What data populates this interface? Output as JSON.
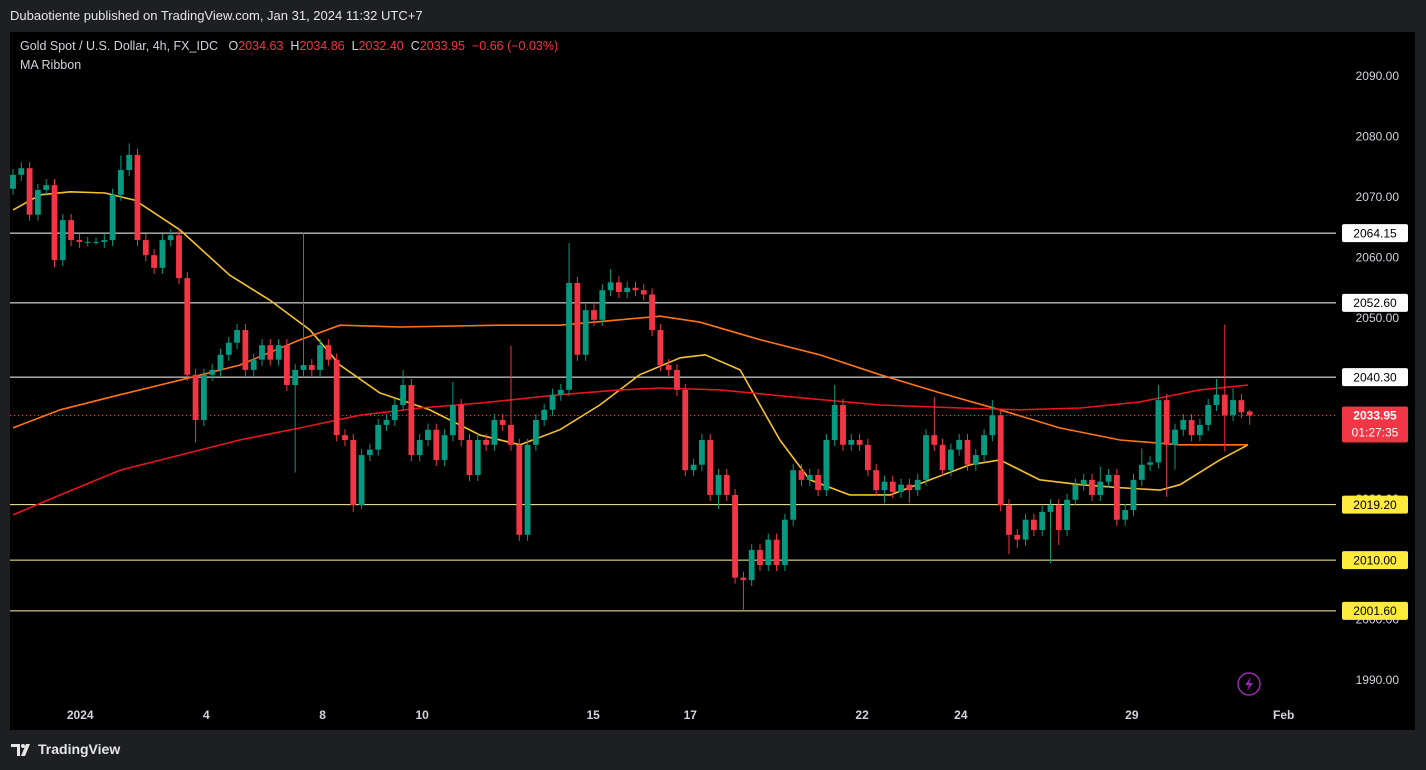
{
  "header": {
    "publisher_line": "Dubaotiente published on TradingView.com, Jan 31, 2024 11:32 UTC+7",
    "branding": "TradingView"
  },
  "chart_data": {
    "type": "candlestick",
    "title": "Gold Spot / U.S. Dollar, 4h, FX_IDC",
    "indicator": "MA Ribbon",
    "legend": [
      {
        "key": "O",
        "value": "2034.63"
      },
      {
        "key": "H",
        "value": "2034.86"
      },
      {
        "key": "L",
        "value": "2032.40"
      },
      {
        "key": "C",
        "value": "2033.95"
      }
    ],
    "change": "−0.66 (−0.03%)",
    "up_color": "#089981",
    "down_color": "#f23645",
    "open": [
      2071.5,
      2073.8,
      2074.9,
      2067.2,
      2071.3,
      2072.1,
      2059.7,
      2066.3,
      2063.0,
      2062.7,
      2062.7,
      2062.7,
      2063.0,
      2070.5,
      2074.6,
      2077.1,
      2063.0,
      2060.5,
      2058.4,
      2063.0,
      2063.8,
      2056.7,
      2040.7,
      2033.2,
      2040.7,
      2041.5,
      2044.0,
      2046.0,
      2048.1,
      2041.5,
      2043.2,
      2045.6,
      2043.2,
      2045.6,
      2039.0,
      2041.5,
      2042.3,
      2041.5,
      2045.6,
      2043.2,
      2030.7,
      2029.9,
      2019.1,
      2027.4,
      2028.3,
      2032.4,
      2033.2,
      2035.7,
      2039.0,
      2027.4,
      2029.9,
      2031.6,
      2026.6,
      2030.7,
      2035.7,
      2029.9,
      2024.1,
      2029.9,
      2029.1,
      2033.2,
      2032.4,
      2029.1,
      2014.2,
      2029.1,
      2033.2,
      2034.9,
      2037.4,
      2038.2,
      2055.9,
      2044.0,
      2051.4,
      2049.8,
      2054.7,
      2056.0,
      2054.4,
      2055.1,
      2054.7,
      2054.0,
      2048.1,
      2042.3,
      2041.5,
      2038.2,
      2024.9,
      2025.8,
      2029.9,
      2020.8,
      2024.1,
      2020.8,
      2007.1,
      2006.7,
      2011.7,
      2009.2,
      2013.4,
      2009.2,
      2016.7,
      2024.9,
      2023.3,
      2024.1,
      2021.6,
      2029.9,
      2035.7,
      2029.1,
      2029.9,
      2029.1,
      2024.9,
      2021.6,
      2023.0,
      2021.3,
      2022.5,
      2021.6,
      2023.3,
      2030.7,
      2029.1,
      2024.9,
      2028.3,
      2029.9,
      2025.8,
      2027.4,
      2030.7,
      2034.0,
      2019.1,
      2014.2,
      2013.4,
      2016.7,
      2015.0,
      2018.0,
      2019.1,
      2015.0,
      2020.0,
      2022.5,
      2023.3,
      2020.8,
      2023.0,
      2024.1,
      2016.7,
      2018.3,
      2023.3,
      2025.8,
      2026.2,
      2036.5,
      2029.1,
      2031.6,
      2033.2,
      2030.7,
      2032.4,
      2035.7,
      2037.4,
      2034.0,
      2036.5,
      2034.63
    ],
    "high": [
      2074.8,
      2075.9,
      2075.9,
      2072.3,
      2073.1,
      2073.1,
      2067.3,
      2067.3,
      2064.0,
      2063.5,
      2063.4,
      2064.0,
      2071.5,
      2077.0,
      2079.0,
      2078.1,
      2064.0,
      2061.5,
      2064.0,
      2064.8,
      2064.8,
      2057.7,
      2041.7,
      2041.7,
      2042.5,
      2045.0,
      2047.0,
      2049.1,
      2049.1,
      2044.2,
      2046.6,
      2046.6,
      2046.6,
      2046.6,
      2042.5,
      2064.2,
      2043.3,
      2046.6,
      2046.6,
      2044.2,
      2031.7,
      2030.9,
      2028.4,
      2029.3,
      2033.4,
      2034.2,
      2036.7,
      2041.5,
      2040.0,
      2030.9,
      2032.6,
      2032.6,
      2031.7,
      2039.5,
      2036.7,
      2030.9,
      2030.9,
      2030.9,
      2034.2,
      2034.2,
      2045.5,
      2030.1,
      2030.1,
      2034.2,
      2035.9,
      2038.4,
      2039.2,
      2062.5,
      2056.9,
      2052.4,
      2052.4,
      2055.7,
      2058.2,
      2057.0,
      2056.1,
      2056.1,
      2055.7,
      2055.0,
      2049.1,
      2043.3,
      2042.5,
      2039.2,
      2026.8,
      2030.9,
      2030.9,
      2025.1,
      2025.1,
      2021.8,
      2008.1,
      2012.7,
      2012.7,
      2014.4,
      2014.4,
      2017.7,
      2025.9,
      2025.9,
      2025.1,
      2025.1,
      2030.9,
      2039.0,
      2036.7,
      2030.9,
      2030.9,
      2030.1,
      2025.9,
      2024.0,
      2024.0,
      2023.5,
      2023.5,
      2024.3,
      2031.7,
      2037.0,
      2030.1,
      2029.3,
      2030.9,
      2030.9,
      2028.4,
      2031.7,
      2036.5,
      2035.0,
      2020.1,
      2015.2,
      2017.7,
      2017.7,
      2019.0,
      2020.1,
      2020.1,
      2021.0,
      2023.5,
      2024.3,
      2024.3,
      2025.5,
      2025.1,
      2025.1,
      2019.3,
      2024.3,
      2028.5,
      2027.2,
      2039.0,
      2037.5,
      2032.6,
      2034.2,
      2034.2,
      2033.4,
      2036.7,
      2040.0,
      2049.0,
      2038.5,
      2037.5,
      2034.86
    ],
    "low": [
      2070.5,
      2072.8,
      2066.2,
      2066.2,
      2070.3,
      2058.5,
      2058.7,
      2062.0,
      2061.7,
      2062.0,
      2062.2,
      2061.7,
      2062.0,
      2069.5,
      2073.6,
      2062.0,
      2059.5,
      2057.4,
      2057.4,
      2062.0,
      2055.7,
      2039.7,
      2029.5,
      2032.2,
      2039.7,
      2040.5,
      2043.0,
      2045.0,
      2040.5,
      2040.5,
      2042.2,
      2042.2,
      2042.2,
      2038.0,
      2024.5,
      2040.5,
      2040.5,
      2040.5,
      2042.2,
      2029.7,
      2028.9,
      2018.0,
      2018.5,
      2026.4,
      2027.3,
      2031.4,
      2032.2,
      2034.7,
      2026.4,
      2026.4,
      2028.9,
      2025.6,
      2025.6,
      2029.7,
      2028.9,
      2023.1,
      2023.1,
      2028.1,
      2028.1,
      2031.4,
      2028.1,
      2013.2,
      2013.2,
      2028.1,
      2032.2,
      2033.9,
      2036.4,
      2037.2,
      2043.0,
      2043.0,
      2048.8,
      2048.8,
      2053.7,
      2053.4,
      2053.4,
      2053.7,
      2053.0,
      2047.1,
      2041.3,
      2040.5,
      2037.2,
      2023.9,
      2023.9,
      2024.8,
      2019.8,
      2018.5,
      2019.8,
      2006.1,
      2001.8,
      2005.7,
      2008.2,
      2008.2,
      2008.2,
      2008.2,
      2015.7,
      2022.3,
      2022.3,
      2020.6,
      2020.6,
      2028.9,
      2028.1,
      2028.1,
      2028.1,
      2023.9,
      2020.6,
      2019.5,
      2020.3,
      2020.3,
      2019.5,
      2020.6,
      2022.3,
      2028.1,
      2023.9,
      2023.9,
      2027.3,
      2024.8,
      2024.8,
      2026.4,
      2029.7,
      2018.1,
      2011.0,
      2012.0,
      2012.4,
      2014.0,
      2014.0,
      2009.5,
      2012.5,
      2014.0,
      2019.0,
      2021.5,
      2019.8,
      2019.8,
      2022.0,
      2015.7,
      2015.7,
      2017.3,
      2022.3,
      2024.8,
      2025.2,
      2020.5,
      2025.0,
      2030.6,
      2029.7,
      2029.7,
      2031.4,
      2034.7,
      2028.0,
      2033.0,
      2033.5,
      2032.4
    ],
    "close": [
      2073.8,
      2074.9,
      2067.2,
      2071.3,
      2072.1,
      2059.7,
      2066.3,
      2063.0,
      2062.7,
      2062.7,
      2062.7,
      2063.0,
      2070.5,
      2074.6,
      2077.1,
      2063.0,
      2060.5,
      2058.4,
      2063.0,
      2063.8,
      2056.7,
      2040.7,
      2033.2,
      2040.7,
      2041.5,
      2044.0,
      2046.0,
      2048.1,
      2041.5,
      2043.2,
      2045.6,
      2043.2,
      2045.6,
      2039.0,
      2041.5,
      2042.3,
      2041.5,
      2045.6,
      2043.2,
      2030.7,
      2029.9,
      2019.1,
      2027.4,
      2028.3,
      2032.4,
      2033.2,
      2035.7,
      2039.0,
      2027.4,
      2029.9,
      2031.6,
      2026.6,
      2030.7,
      2035.7,
      2029.9,
      2024.1,
      2029.9,
      2029.1,
      2033.2,
      2032.4,
      2029.1,
      2014.2,
      2029.1,
      2033.2,
      2034.9,
      2037.4,
      2038.2,
      2055.9,
      2044.0,
      2051.4,
      2049.8,
      2054.7,
      2056.0,
      2054.4,
      2055.1,
      2054.7,
      2054.0,
      2048.1,
      2042.3,
      2041.5,
      2038.2,
      2024.9,
      2025.8,
      2029.9,
      2020.8,
      2024.1,
      2020.8,
      2007.1,
      2006.7,
      2011.7,
      2009.2,
      2013.4,
      2009.2,
      2016.7,
      2024.9,
      2023.3,
      2024.1,
      2021.6,
      2029.9,
      2035.7,
      2029.1,
      2029.9,
      2029.1,
      2024.9,
      2021.6,
      2023.0,
      2021.3,
      2022.5,
      2021.6,
      2023.3,
      2030.7,
      2029.1,
      2024.9,
      2028.3,
      2029.9,
      2025.8,
      2027.4,
      2030.7,
      2034.0,
      2019.1,
      2014.2,
      2013.4,
      2016.7,
      2015.0,
      2018.0,
      2019.1,
      2015.0,
      2020.0,
      2022.5,
      2023.3,
      2020.8,
      2023.0,
      2024.1,
      2016.7,
      2018.3,
      2023.3,
      2025.8,
      2026.2,
      2036.5,
      2029.1,
      2031.6,
      2033.2,
      2030.7,
      2032.4,
      2035.7,
      2037.4,
      2034.0,
      2036.5,
      2034.5,
      2033.95
    ],
    "moving_averages": [
      {
        "color": "#f5c12e",
        "x": [
          0,
          3.3,
          6.9,
          11.1,
          14.7,
          20.1,
          26.1,
          30.9,
          35.8,
          39.4,
          44.2,
          50.2,
          56.3,
          61.1,
          65.9,
          70.7,
          75.5,
          80.4,
          83.4,
          87.6,
          92.4,
          96.0,
          100.8,
          105.7,
          110.5,
          115.3,
          118.9,
          123.7,
          128.6,
          133.4,
          138.2,
          140.6,
          145.4,
          148.8
        ],
        "values": [
          2068.0,
          2070.5,
          2071.0,
          2070.8,
          2069.6,
          2064.7,
          2057.2,
          2053.1,
          2048.1,
          2042.3,
          2037.7,
          2034.9,
          2030.7,
          2029.1,
          2031.6,
          2035.7,
          2040.7,
          2043.5,
          2044.0,
          2041.5,
          2029.9,
          2023.3,
          2020.8,
          2020.8,
          2023.3,
          2025.8,
          2026.6,
          2023.3,
          2022.5,
          2022.0,
          2021.6,
          2022.5,
          2026.6,
          2029.1
        ]
      },
      {
        "color": "#ff7418",
        "x": [
          0,
          5.7,
          12.9,
          20.1,
          27.3,
          34.6,
          39.4,
          46.6,
          58.7,
          65.9,
          73.1,
          78.0,
          82.8,
          90.0,
          97.2,
          104.5,
          111.7,
          118.9,
          126.1,
          133.4,
          140.6,
          148.8
        ],
        "values": [
          2031.9,
          2034.9,
          2037.4,
          2039.8,
          2042.3,
          2046.5,
          2048.9,
          2048.6,
          2048.9,
          2048.9,
          2049.8,
          2050.4,
          2049.4,
          2046.5,
          2044.0,
          2040.7,
          2037.7,
          2034.9,
          2031.9,
          2029.9,
          2029.1,
          2029.1
        ]
      },
      {
        "color": "#e8151f",
        "x": [
          0,
          5.7,
          12.9,
          20.1,
          27.3,
          34.6,
          41.8,
          49.0,
          56.3,
          65.9,
          73.1,
          78.0,
          85.2,
          94.8,
          104.5,
          114.1,
          121.3,
          128.6,
          135.8,
          143.0,
          148.8
        ],
        "values": [
          2017.5,
          2020.8,
          2024.9,
          2027.4,
          2029.9,
          2031.9,
          2034.0,
          2035.2,
          2036.0,
          2037.4,
          2038.2,
          2038.5,
          2038.2,
          2036.9,
          2035.7,
          2035.2,
          2034.9,
          2035.2,
          2036.2,
          2038.2,
          2039.0
        ]
      }
    ],
    "levels": [
      {
        "value": 2064.15,
        "label": "2064.15",
        "color": "#ffffff",
        "label_color": "#ffffff"
      },
      {
        "value": 2052.6,
        "label": "2052.60",
        "color": "#ffffff",
        "label_color": "#ffffff"
      },
      {
        "value": 2040.3,
        "label": "2040.30",
        "color": "#ffffff",
        "label_color": "#ffffff"
      },
      {
        "value": 2019.2,
        "label": "2019.20",
        "color": "#fff59d",
        "label_color": "#ffeb3b"
      },
      {
        "value": 2010.0,
        "label": "2010.00",
        "color": "#fff59d",
        "label_color": "#ffeb3b"
      },
      {
        "value": 2001.6,
        "label": "2001.60",
        "color": "#fff59d",
        "label_color": "#ffeb3b"
      }
    ],
    "last_price": {
      "value": 2033.95,
      "label": "2033.95",
      "countdown": "01:27:35",
      "color": "#f23645"
    },
    "xlim": [
      -0.36,
      159.4
    ],
    "xticks": [
      {
        "value": 8.1,
        "label": "2024"
      },
      {
        "value": 23.3,
        "label": "4"
      },
      {
        "value": 37.3,
        "label": "8"
      },
      {
        "value": 49.3,
        "label": "10"
      },
      {
        "value": 69.9,
        "label": "15"
      },
      {
        "value": 81.6,
        "label": "17"
      },
      {
        "value": 102.3,
        "label": "22"
      },
      {
        "value": 114.2,
        "label": "24"
      },
      {
        "value": 134.8,
        "label": "29"
      },
      {
        "value": 153.1,
        "label": "Feb"
      }
    ],
    "ylim": [
      1986.85,
      2097.45
    ],
    "yticks": [
      {
        "value": 1990,
        "label": "1990.00"
      },
      {
        "value": 2000,
        "label": "2000.00"
      },
      {
        "value": 2010,
        "label": "2010.00"
      },
      {
        "value": 2020,
        "label": "2020.00"
      },
      {
        "value": 2030,
        "label": "2030.00"
      },
      {
        "value": 2040,
        "label": "2040.00"
      },
      {
        "value": 2050,
        "label": "2050.00"
      },
      {
        "value": 2060,
        "label": "2060.00"
      },
      {
        "value": 2070,
        "label": "2070.00"
      },
      {
        "value": 2080,
        "label": "2080.00"
      },
      {
        "value": 2090,
        "label": "2090.00"
      }
    ],
    "grid": false
  }
}
